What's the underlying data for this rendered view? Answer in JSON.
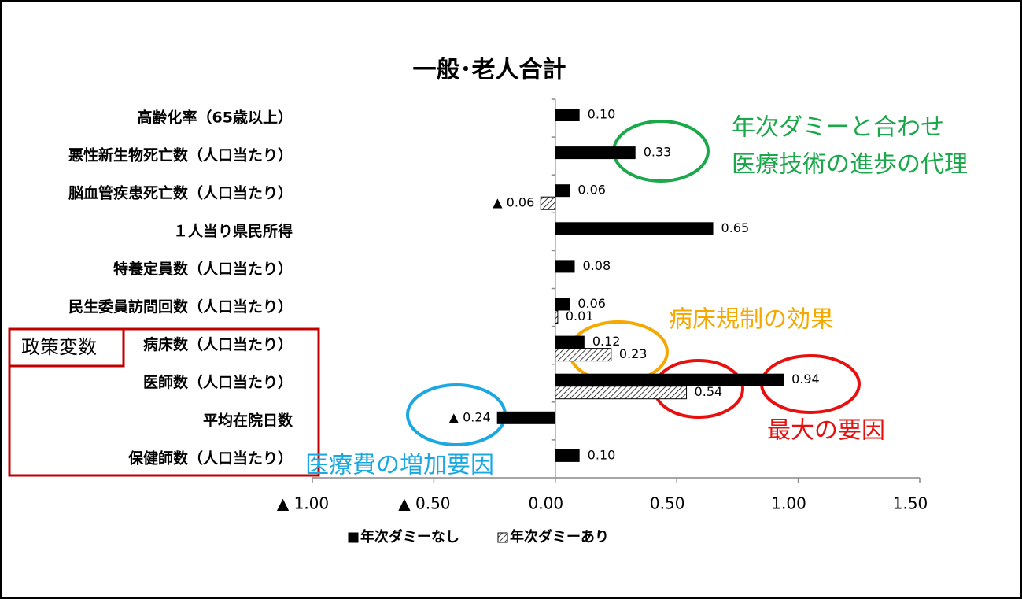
{
  "chart_data": {
    "type": "hbar",
    "title": "一般･老人合計",
    "categories": [
      "高齢化率（65歳以上）",
      "悪性新生物死亡数（人口当たり）",
      "脳血管疾患死亡数（人口当たり）",
      "１人当り県民所得",
      "特養定員数（人口当たり）",
      "民生委員訪問回数（人口当たり）",
      "病床数（人口当たり）",
      "医師数（人口当たり）",
      "平均在院日数",
      "保健師数（人口当たり）"
    ],
    "series": [
      {
        "name": "年次ダミーなし",
        "color": "#000000",
        "hatch": false,
        "values": [
          0.1,
          0.33,
          0.06,
          0.65,
          0.08,
          0.06,
          0.12,
          0.94,
          -0.24,
          0.1
        ],
        "value_labels": [
          "0.10",
          "0.33",
          "0.06",
          "0.65",
          "0.08",
          "0.06",
          "0.12",
          "0.94",
          "▲ 0.24",
          "0.10"
        ]
      },
      {
        "name": "年次ダミーあり",
        "color": "#000000",
        "hatch": true,
        "values": [
          null,
          null,
          -0.06,
          null,
          null,
          0.01,
          0.23,
          0.54,
          null,
          null
        ],
        "value_labels": [
          null,
          null,
          "▲ 0.06",
          null,
          null,
          "0.01",
          "0.23",
          "0.54",
          null,
          null
        ]
      }
    ],
    "xlim": [
      -1,
      1.5
    ],
    "xticks": [
      {
        "value": -1,
        "label": "▲ 1.00"
      },
      {
        "value": -0.5,
        "label": "▲ 0.50"
      },
      {
        "value": 0,
        "label": "0.00"
      },
      {
        "value": 0.5,
        "label": "0.50"
      },
      {
        "value": 1,
        "label": "1.00"
      },
      {
        "value": 1.5,
        "label": "1.50"
      }
    ],
    "annotations": [
      {
        "text": [
          "年次ダミーと合わせ",
          "医療技術の進歩の代理"
        ],
        "color": "#1aa84a"
      },
      {
        "text": [
          "病床規制の効果"
        ],
        "color": "#f5a800"
      },
      {
        "text": [
          "最大の要因"
        ],
        "color": "#e8100e"
      },
      {
        "text": [
          "医療費の増加要因"
        ],
        "color": "#1ba8e0"
      },
      {
        "text": [
          "政策変数"
        ],
        "color": "#000000"
      }
    ]
  }
}
